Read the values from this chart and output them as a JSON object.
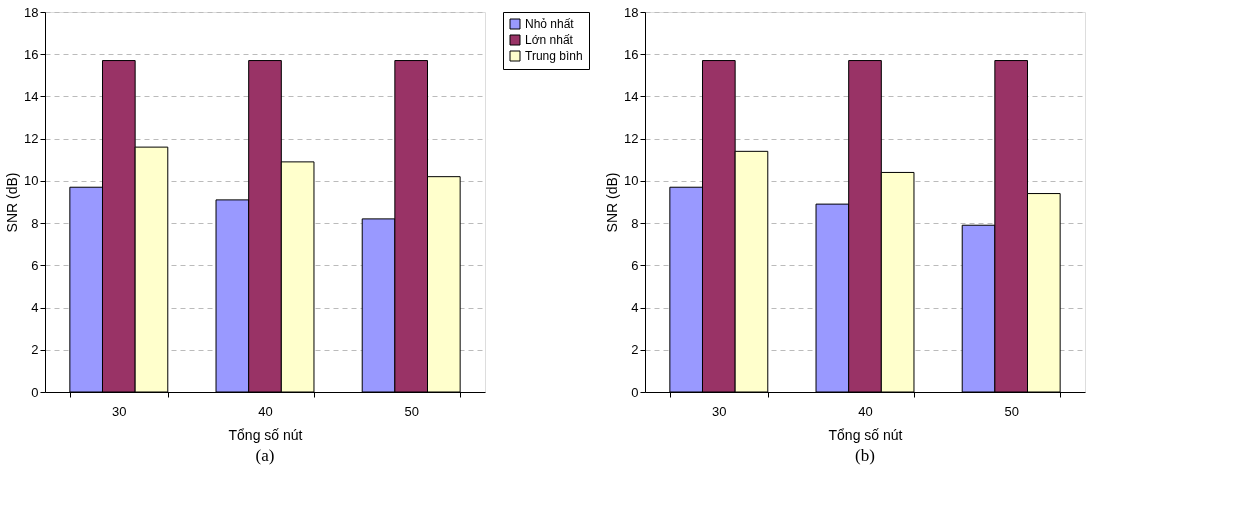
{
  "chart_data": [
    {
      "type": "bar",
      "categories": [
        "30",
        "40",
        "50"
      ],
      "xlabel": "Tổng số nút",
      "ylabel": "SNR (dB)",
      "ylim": [
        0,
        18
      ],
      "yticks": [
        0,
        2,
        4,
        6,
        8,
        10,
        12,
        14,
        16,
        18
      ],
      "grid": "y",
      "legend": "right",
      "annotations": [
        "(a)"
      ],
      "series": [
        {
          "name": "Nhỏ nhất",
          "color": "#9999ff",
          "values": [
            9.7,
            9.1,
            8.2
          ]
        },
        {
          "name": "Lớn nhất",
          "color": "#993366",
          "values": [
            15.7,
            15.7,
            15.7
          ]
        },
        {
          "name": "Trung bình",
          "color": "#ffffcc",
          "values": [
            11.6,
            10.9,
            10.2
          ]
        }
      ]
    },
    {
      "type": "bar",
      "categories": [
        "30",
        "40",
        "50"
      ],
      "xlabel": "Tổng số nút",
      "ylabel": "SNR (dB)",
      "ylim": [
        0,
        18
      ],
      "yticks": [
        0,
        2,
        4,
        6,
        8,
        10,
        12,
        14,
        16,
        18
      ],
      "grid": "y",
      "annotations": [
        "(b)"
      ],
      "series": [
        {
          "color": "#9999ff",
          "values": [
            9.7,
            8.9,
            7.9
          ]
        },
        {
          "color": "#993366",
          "values": [
            15.7,
            15.7,
            15.7
          ]
        },
        {
          "color": "#ffffcc",
          "values": [
            11.4,
            10.4,
            9.4
          ]
        }
      ]
    }
  ]
}
